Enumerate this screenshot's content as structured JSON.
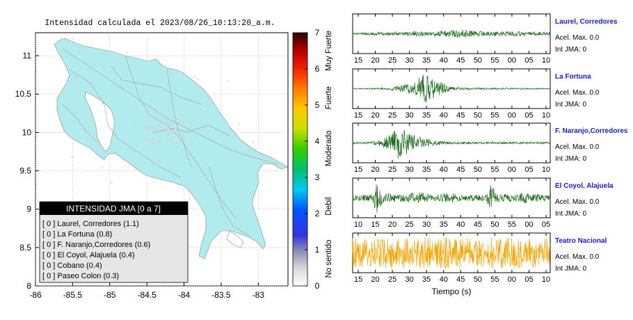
{
  "map": {
    "title": "Intensidad calculada el 2023/08/26_10:13:20_a.m.",
    "xticks": [
      -86,
      -85.5,
      -85,
      -84.5,
      -84,
      -83.5,
      -83
    ],
    "yticks": [
      8,
      8.5,
      9,
      9.5,
      10,
      10.5,
      11
    ],
    "xlim": [
      -86,
      -82.6
    ],
    "ylim": [
      8,
      11.3
    ],
    "land_color": "#b2ebee",
    "legend": {
      "title": "INTENSIDAD JMA [0 a 7]",
      "items": [
        "[ 0 ]  Laurel, Corredores (1.1)",
        "[ 0 ]  La Fortuna (0.8)",
        "[ 0 ]  F. Naranjo,Corredores (0.6)",
        "[ 0 ]  El Coyol, Alajuela (0.4)",
        "[ 0 ]  Cobano (0.4)",
        "[ 0 ]  Paseo Colon (0.3)"
      ]
    }
  },
  "colorbar": {
    "ticks": [
      "0",
      "1",
      "2",
      "3",
      "4",
      "5",
      "6",
      "7"
    ],
    "labels": [
      "No sentido",
      "Debil",
      "Moderado",
      "Fuerte",
      "Muy Fuerte"
    ]
  },
  "chart_data": [
    {
      "type": "line",
      "title": "Laurel, Corredores",
      "xticks": [
        "15",
        "20",
        "25",
        "30",
        "35",
        "40",
        "45",
        "50",
        "55",
        "00",
        "05",
        "10"
      ],
      "acel": "Acel. Max. 0.0",
      "jma": "Int JMA: 0",
      "color": "#1e6b1e",
      "envelope": [
        [
          0,
          0.05
        ],
        [
          0.1,
          0.08
        ],
        [
          0.2,
          0.1
        ],
        [
          0.32,
          0.15
        ],
        [
          0.4,
          0.1
        ],
        [
          0.5,
          0.2
        ],
        [
          0.56,
          0.28
        ],
        [
          0.62,
          0.15
        ],
        [
          0.7,
          0.12
        ],
        [
          0.8,
          0.15
        ],
        [
          0.9,
          0.12
        ],
        [
          1,
          0.1
        ]
      ]
    },
    {
      "type": "line",
      "title": "La Fortuna",
      "xticks": [
        "15",
        "20",
        "25",
        "30",
        "35",
        "40",
        "45",
        "50",
        "55",
        "00",
        "05",
        "10"
      ],
      "acel": "Acel. Max. 0.0",
      "jma": "Int JMA: 0",
      "color": "#1e6b1e",
      "envelope": [
        [
          0,
          0.03
        ],
        [
          0.17,
          0.05
        ],
        [
          0.22,
          0.15
        ],
        [
          0.28,
          0.3
        ],
        [
          0.33,
          0.55
        ],
        [
          0.36,
          0.95
        ],
        [
          0.4,
          0.6
        ],
        [
          0.46,
          0.3
        ],
        [
          0.52,
          0.1
        ],
        [
          0.6,
          0.05
        ],
        [
          1,
          0.03
        ]
      ]
    },
    {
      "type": "line",
      "title": "F. Naranjo,Corredores",
      "xticks": [
        "15",
        "20",
        "25",
        "30",
        "35",
        "40",
        "45",
        "50",
        "55",
        "00",
        "05",
        "10"
      ],
      "acel": "Acel. Max. 0.0",
      "jma": "Int JMA: 0",
      "color": "#1e6b1e",
      "envelope": [
        [
          0,
          0.05
        ],
        [
          0.08,
          0.06
        ],
        [
          0.13,
          0.15
        ],
        [
          0.17,
          0.35
        ],
        [
          0.2,
          0.65
        ],
        [
          0.22,
          0.95
        ],
        [
          0.26,
          0.75
        ],
        [
          0.3,
          0.5
        ],
        [
          0.35,
          0.3
        ],
        [
          0.42,
          0.12
        ],
        [
          0.5,
          0.06
        ],
        [
          1,
          0.05
        ]
      ]
    },
    {
      "type": "line",
      "title": "El Coyol, Alajuela",
      "xticks": [
        "10",
        "15",
        "20",
        "25",
        "30",
        "35",
        "40",
        "45",
        "50",
        "55",
        "00",
        "05"
      ],
      "acel": "Acel. Max. 0.0",
      "jma": "Int JMA: 0",
      "color": "#1e6b1e",
      "envelope": [
        [
          0,
          0.15
        ],
        [
          0.1,
          0.2
        ],
        [
          0.12,
          0.9
        ],
        [
          0.15,
          0.3
        ],
        [
          0.25,
          0.2
        ],
        [
          0.35,
          0.35
        ],
        [
          0.4,
          0.15
        ],
        [
          0.5,
          0.3
        ],
        [
          0.55,
          0.15
        ],
        [
          0.68,
          0.2
        ],
        [
          0.7,
          0.95
        ],
        [
          0.73,
          0.3
        ],
        [
          0.8,
          0.2
        ],
        [
          0.88,
          0.3
        ],
        [
          0.95,
          0.2
        ],
        [
          1,
          0.15
        ]
      ]
    },
    {
      "type": "line",
      "title": "Teatro Nacional",
      "xticks": [
        "15",
        "20",
        "25",
        "30",
        "35",
        "40",
        "45",
        "50",
        "55",
        "00",
        "05",
        "10"
      ],
      "xlabel": "Tiempo (s)",
      "acel": "Acel. Max. 0.0",
      "jma": "Int JMA: 0",
      "color": "#f5a500",
      "envelope": [
        [
          0,
          0.85
        ],
        [
          0.5,
          0.9
        ],
        [
          1,
          0.85
        ]
      ]
    }
  ]
}
